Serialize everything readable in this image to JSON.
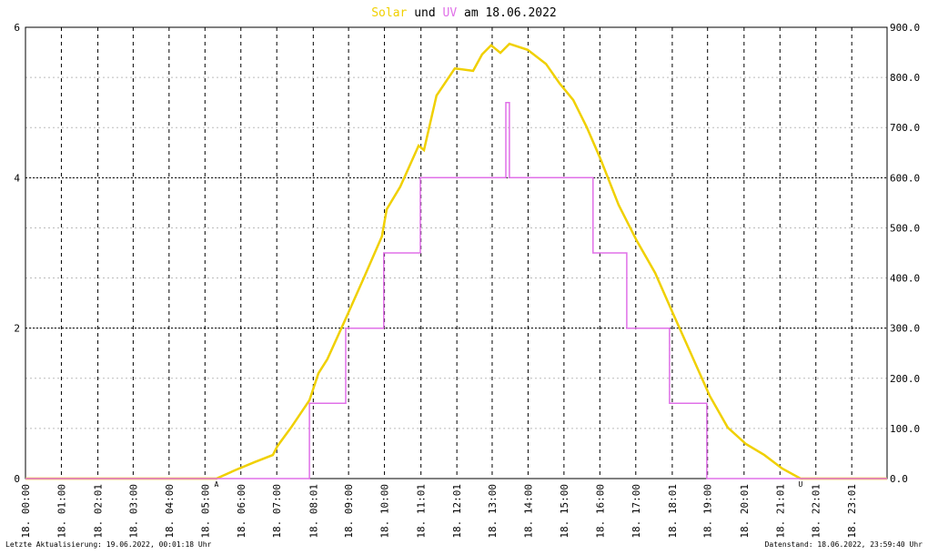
{
  "chart_data": {
    "type": "line",
    "title": [
      "Solar",
      "und",
      "UV",
      "am 18.06.2022"
    ],
    "footer_left": "Letzte Aktualisierung: 19.06.2022, 00:01:18 Uhr",
    "footer_right": "Datenstand: 18.06.2022, 23:59:40 Uhr",
    "markers": [
      {
        "x": 5.32,
        "label": "A",
        "color": "#d02020"
      },
      {
        "x": 21.59,
        "label": "U",
        "color": "#d02020"
      }
    ],
    "xlim": [
      0,
      24
    ],
    "xticks": [
      {
        "value": 0,
        "label": "18. 00:00"
      },
      {
        "value": 1,
        "label": "18. 01:00"
      },
      {
        "value": 2.0167,
        "label": "18. 02:01"
      },
      {
        "value": 3,
        "label": "18. 03:00"
      },
      {
        "value": 4,
        "label": "18. 04:00"
      },
      {
        "value": 5,
        "label": "18. 05:00"
      },
      {
        "value": 6,
        "label": "18. 06:00"
      },
      {
        "value": 7,
        "label": "18. 07:00"
      },
      {
        "value": 8.0167,
        "label": "18. 08:01"
      },
      {
        "value": 9,
        "label": "18. 09:00"
      },
      {
        "value": 10,
        "label": "18. 10:00"
      },
      {
        "value": 11.0167,
        "label": "18. 11:01"
      },
      {
        "value": 12.0167,
        "label": "18. 12:01"
      },
      {
        "value": 13,
        "label": "18. 13:00"
      },
      {
        "value": 14,
        "label": "18. 14:00"
      },
      {
        "value": 15,
        "label": "18. 15:00"
      },
      {
        "value": 16,
        "label": "18. 16:00"
      },
      {
        "value": 17,
        "label": "18. 17:00"
      },
      {
        "value": 18.0167,
        "label": "18. 18:01"
      },
      {
        "value": 19,
        "label": "18. 19:00"
      },
      {
        "value": 20.0167,
        "label": "18. 20:01"
      },
      {
        "value": 21.0167,
        "label": "18. 21:01"
      },
      {
        "value": 22.0167,
        "label": "18. 22:01"
      },
      {
        "value": 23.0167,
        "label": "18. 23:01"
      }
    ],
    "ylim": [
      0,
      6
    ],
    "yticks": [
      0,
      2,
      4,
      6
    ],
    "y2lim": [
      0,
      900
    ],
    "y2ticks": [
      {
        "value": 0,
        "label": "0.0"
      },
      {
        "value": 100,
        "label": "100.0"
      },
      {
        "value": 200,
        "label": "200.0"
      },
      {
        "value": 300,
        "label": "300.0"
      },
      {
        "value": 400,
        "label": "400.0"
      },
      {
        "value": 500,
        "label": "500.0"
      },
      {
        "value": 600,
        "label": "600.0"
      },
      {
        "value": 700,
        "label": "700.0"
      },
      {
        "value": 800,
        "label": "800.0"
      },
      {
        "value": 900,
        "label": "900.0"
      }
    ],
    "grid": true,
    "series": [
      {
        "name": "Solar",
        "color": "#f0d000",
        "axis": "y2",
        "x": [
          0,
          5.32,
          5.88,
          6.39,
          6.89,
          7.02,
          7.4,
          7.91,
          8.16,
          8.41,
          8.92,
          9.43,
          9.93,
          10.06,
          10.44,
          10.95,
          11.1,
          11.45,
          11.96,
          12.47,
          12.72,
          12.97,
          13.23,
          13.48,
          13.99,
          14.5,
          14.88,
          15.26,
          15.64,
          16.02,
          16.52,
          17.03,
          17.54,
          18.04,
          18.55,
          19.06,
          19.56,
          20.07,
          20.58,
          21.08,
          21.59,
          24
        ],
        "values": [
          0,
          0,
          18,
          33,
          47,
          65,
          102,
          156,
          210,
          238,
          319,
          401,
          483,
          537,
          582,
          664,
          655,
          764,
          818,
          813,
          846,
          864,
          849,
          867,
          855,
          827,
          788,
          755,
          700,
          637,
          546,
          474,
          410,
          329,
          247,
          165,
          102,
          69,
          47,
          20,
          0,
          0
        ]
      },
      {
        "name": "UV",
        "color": "#e070e8",
        "axis": "y",
        "x": [
          0,
          7.91,
          7.91,
          8.92,
          8.92,
          9.98,
          9.98,
          11.0,
          11.0,
          13.38,
          13.38,
          13.48,
          13.48,
          15.81,
          15.81,
          16.75,
          16.75,
          17.94,
          17.94,
          18.98,
          18.98,
          24
        ],
        "values": [
          0,
          0,
          1,
          1,
          2,
          2,
          3,
          3,
          4,
          4,
          5,
          5,
          4,
          4,
          3,
          3,
          2,
          2,
          1,
          1,
          0,
          0
        ]
      }
    ]
  }
}
